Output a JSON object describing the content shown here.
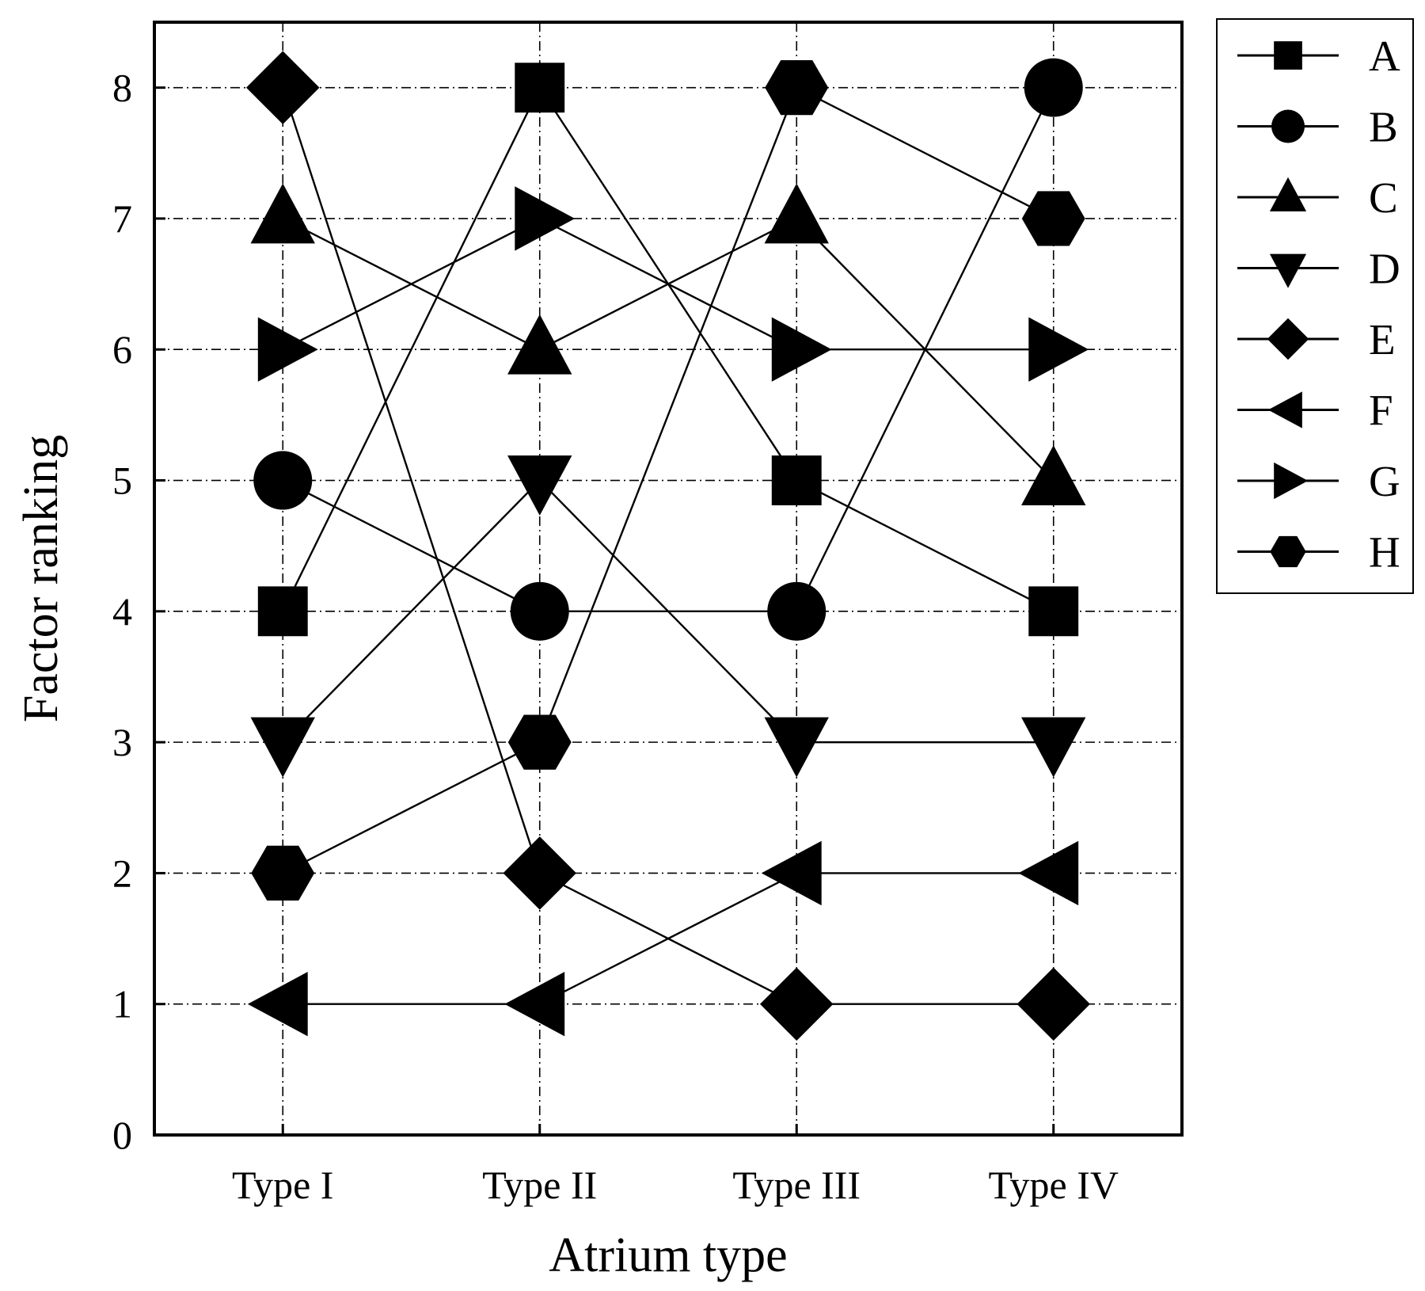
{
  "chart_data": {
    "type": "line",
    "title": "",
    "xlabel": "Atrium type",
    "ylabel": "Factor ranking",
    "categories": [
      "Type I",
      "Type II",
      "Type III",
      "Type IV"
    ],
    "ylim": [
      0,
      8.5
    ],
    "yticks": [
      0,
      1,
      2,
      3,
      4,
      5,
      6,
      7,
      8
    ],
    "grid": true,
    "legend_position": "outside-right-top",
    "series": [
      {
        "name": "A",
        "marker": "square",
        "values": [
          4,
          8,
          5,
          4
        ]
      },
      {
        "name": "B",
        "marker": "circle",
        "values": [
          5,
          4,
          4,
          8
        ]
      },
      {
        "name": "C",
        "marker": "triangle-up",
        "values": [
          7,
          6,
          7,
          5
        ]
      },
      {
        "name": "D",
        "marker": "triangle-down",
        "values": [
          3,
          5,
          3,
          3
        ]
      },
      {
        "name": "E",
        "marker": "diamond",
        "values": [
          8,
          2,
          1,
          1
        ]
      },
      {
        "name": "F",
        "marker": "triangle-left",
        "values": [
          1,
          1,
          2,
          2
        ]
      },
      {
        "name": "G",
        "marker": "triangle-right",
        "values": [
          6,
          7,
          6,
          6
        ]
      },
      {
        "name": "H",
        "marker": "hexagon",
        "values": [
          2,
          3,
          8,
          7
        ]
      }
    ],
    "colors": {
      "line": "#000000",
      "marker": "#000000",
      "grid": "#000000"
    }
  }
}
